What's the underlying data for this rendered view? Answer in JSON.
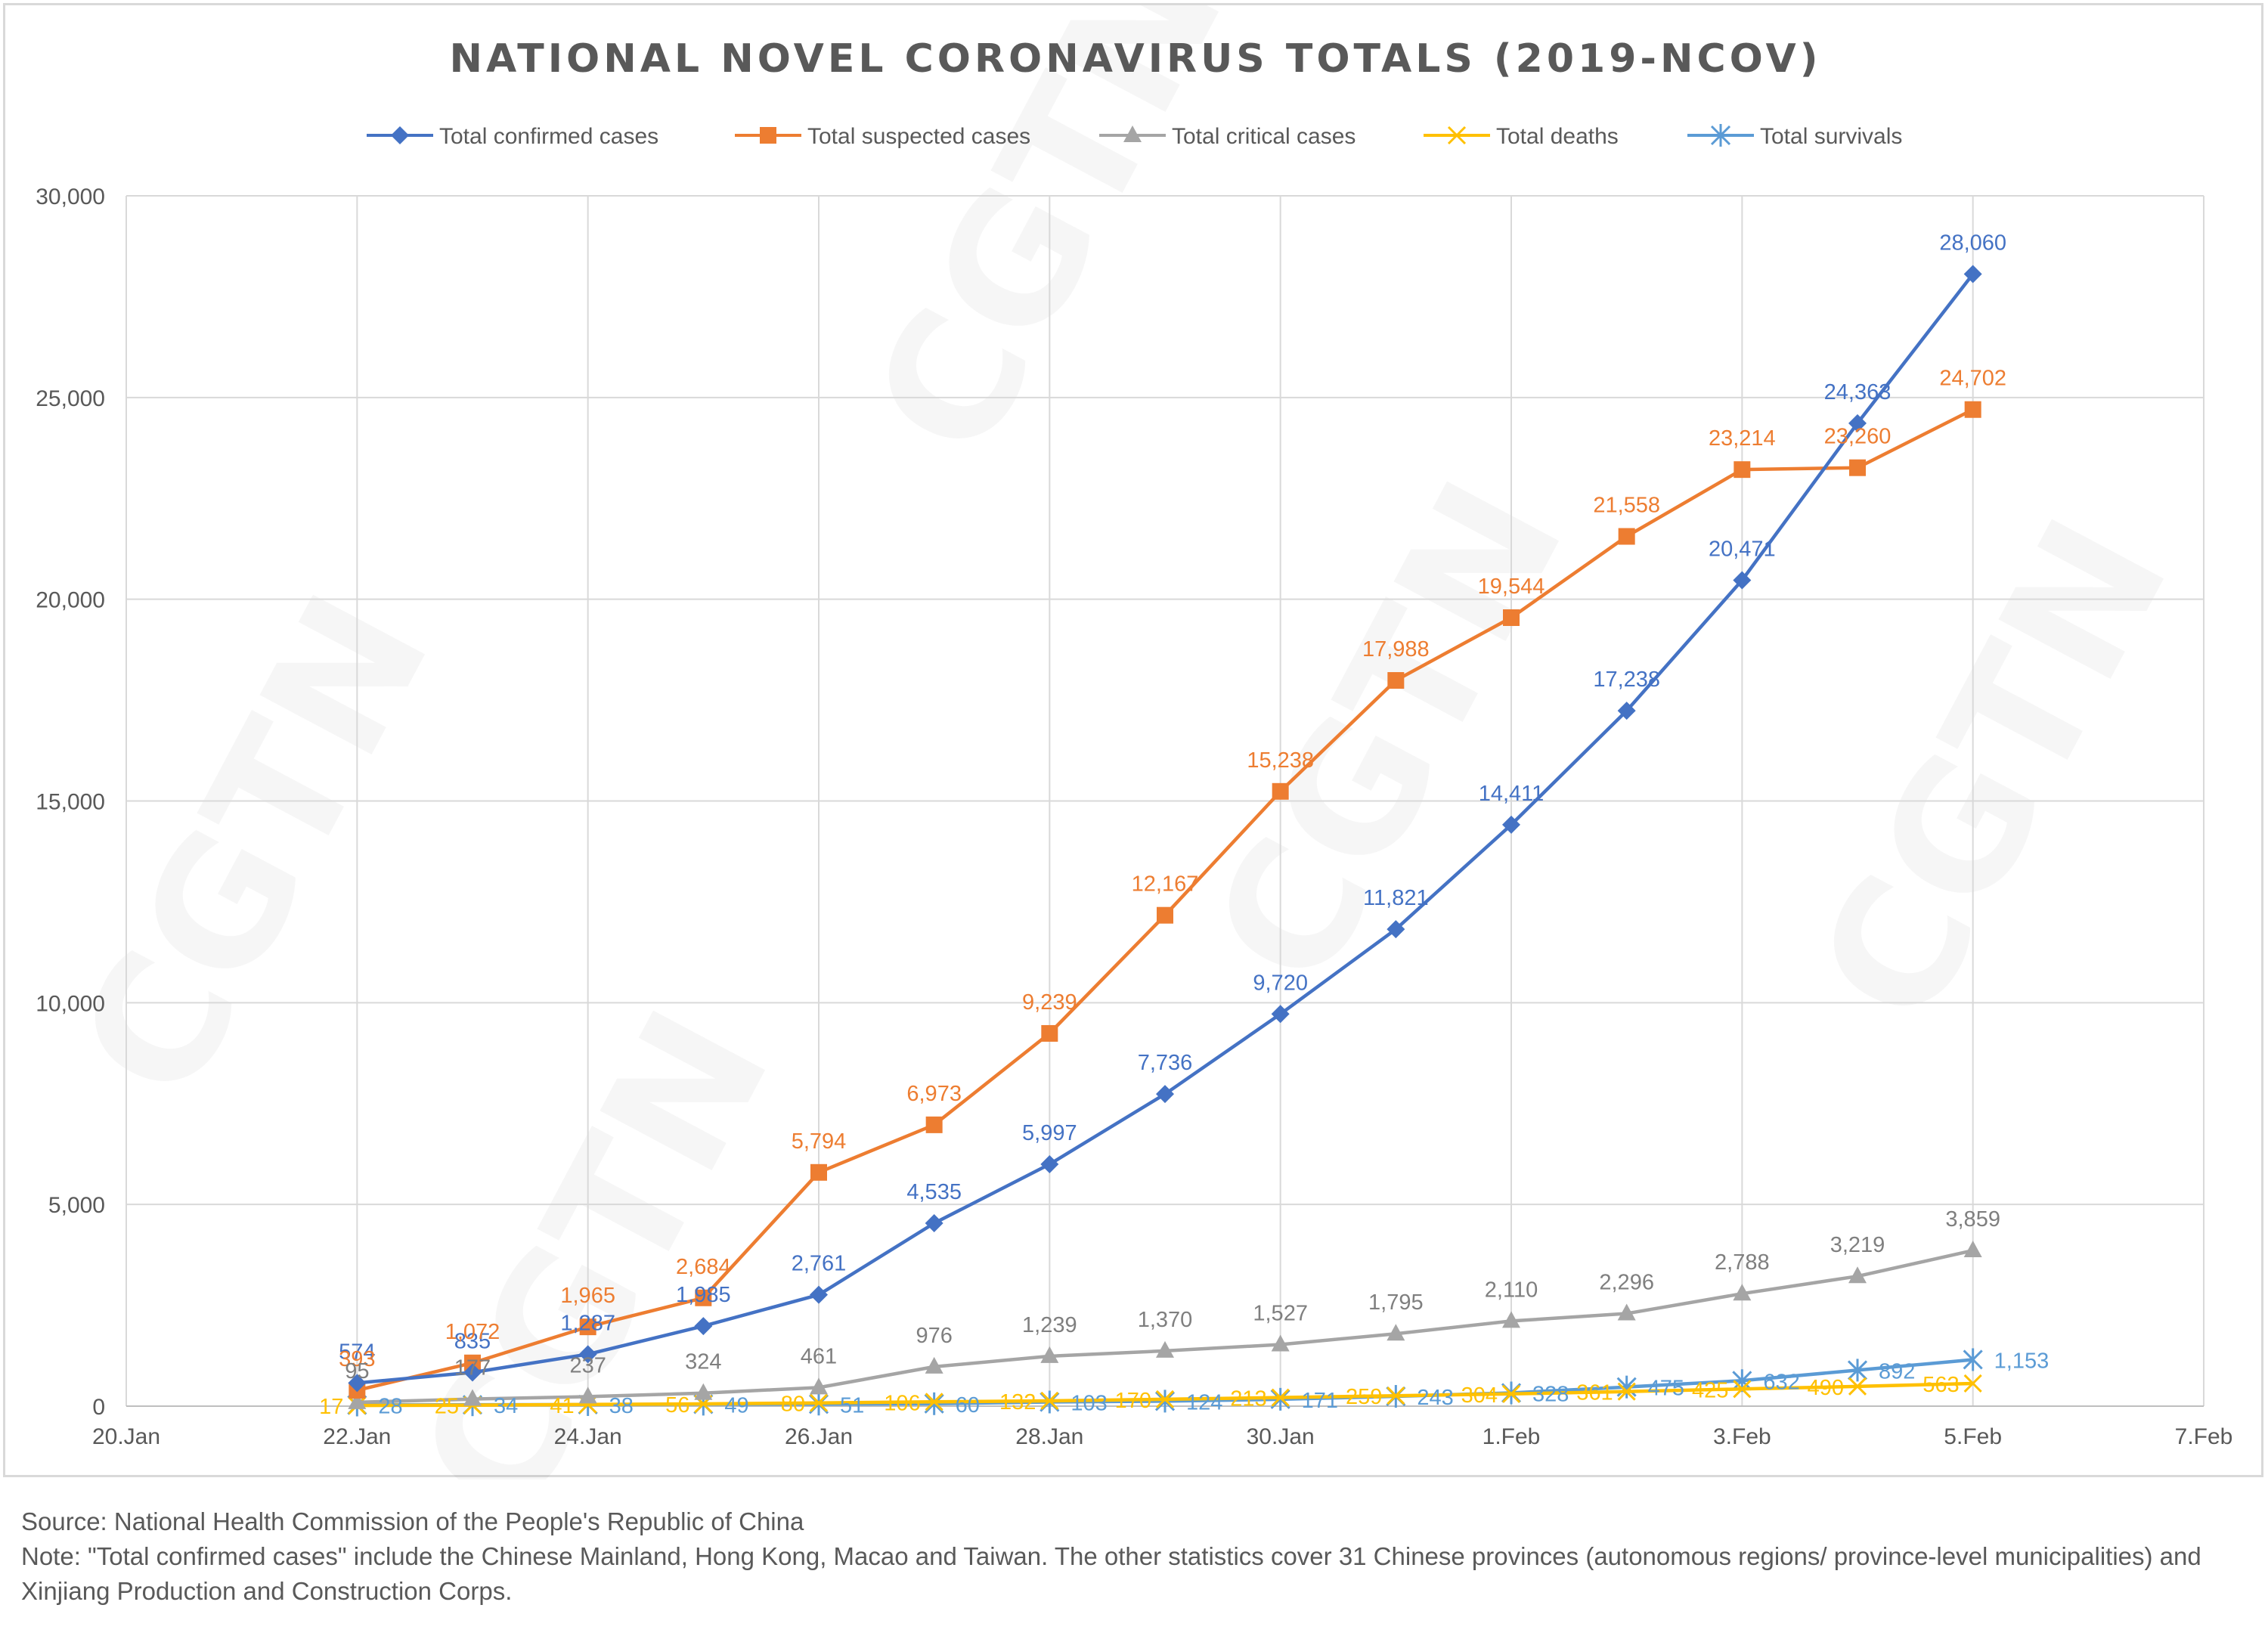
{
  "chart_data": {
    "type": "line",
    "title": "NATIONAL NOVEL CORONAVIRUS TOTALS (2019-NCOV)",
    "watermark": "CGTN",
    "x_axis": {
      "type": "date",
      "tick_labels": [
        "20.Jan",
        "22.Jan",
        "24.Jan",
        "26.Jan",
        "28.Jan",
        "30.Jan",
        "1.Feb",
        "3.Feb",
        "5.Feb",
        "7.Feb"
      ],
      "range": [
        "2020-01-20",
        "2020-02-07"
      ]
    },
    "y_axis": {
      "tick_labels": [
        "0",
        "5,000",
        "10,000",
        "15,000",
        "20,000",
        "25,000",
        "30,000"
      ],
      "range": [
        0,
        30000
      ]
    },
    "grid": "horizontal and vertical",
    "legend_position": "top",
    "x": [
      "2020-01-22",
      "2020-01-23",
      "2020-01-24",
      "2020-01-25",
      "2020-01-26",
      "2020-01-27",
      "2020-01-28",
      "2020-01-29",
      "2020-01-30",
      "2020-01-31",
      "2020-02-01",
      "2020-02-02",
      "2020-02-03",
      "2020-02-04",
      "2020-02-05"
    ],
    "series": [
      {
        "name": "Total confirmed cases",
        "color": "#4472c4",
        "marker": "diamond",
        "values": [
          574,
          835,
          1287,
          1985,
          2761,
          4535,
          5997,
          7736,
          9720,
          11821,
          14411,
          17238,
          20471,
          24363,
          28060
        ],
        "labels": [
          "574",
          "835",
          "1,287",
          "1,985",
          "2,761",
          "4,535",
          "5,997",
          "7,736",
          "9,720",
          "11,821",
          "14,411",
          "17,238",
          "20,471",
          "24,363",
          "28,060"
        ]
      },
      {
        "name": "Total suspected cases",
        "color": "#ed7d31",
        "marker": "square",
        "values": [
          393,
          1072,
          1965,
          2684,
          5794,
          6973,
          9239,
          12167,
          15238,
          17988,
          19544,
          21558,
          23214,
          23260,
          24702
        ],
        "labels": [
          "393",
          "1,072",
          "1,965",
          "2,684",
          "5,794",
          "6,973",
          "9,239",
          "12,167",
          "15,238",
          "17,988",
          "19,544",
          "21,558",
          "23,214",
          "23,260",
          "24,702"
        ]
      },
      {
        "name": "Total critical cases",
        "color": "#a5a5a5",
        "marker": "triangle",
        "values": [
          95,
          177,
          237,
          324,
          461,
          976,
          1239,
          1370,
          1527,
          1795,
          2110,
          2296,
          2788,
          3219,
          3859
        ],
        "labels": [
          "95",
          "177",
          "237",
          "324",
          "461",
          "976",
          "1,239",
          "1,370",
          "1,527",
          "1,795",
          "2,110",
          "2,296",
          "2,788",
          "3,219",
          "3,859"
        ]
      },
      {
        "name": "Total deaths",
        "color": "#ffc000",
        "marker": "x",
        "values": [
          17,
          25,
          41,
          56,
          80,
          106,
          132,
          170,
          213,
          259,
          304,
          361,
          425,
          490,
          563
        ],
        "labels": [
          "17",
          "25",
          "41",
          "56",
          "80",
          "106",
          "132",
          "170",
          "213",
          "259",
          "304",
          "361",
          "425",
          "490",
          "563"
        ]
      },
      {
        "name": "Total survivals",
        "color": "#5b9bd5",
        "marker": "star",
        "values": [
          28,
          34,
          38,
          49,
          51,
          60,
          103,
          124,
          171,
          243,
          328,
          475,
          632,
          892,
          1153
        ],
        "labels": [
          "28",
          "34",
          "38",
          "49",
          "51",
          "60",
          "103",
          "124",
          "171",
          "243",
          "328",
          "475",
          "632",
          "892",
          "1,153"
        ]
      }
    ]
  },
  "footer": {
    "source": "Source: National Health Commission of the People's Republic of China",
    "note": "Note: \"Total confirmed cases\" include the Chinese Mainland, Hong Kong, Macao and Taiwan. The other statistics cover 31 Chinese provinces (autonomous regions/ province-level municipalities) and Xinjiang Production and Construction Corps."
  }
}
